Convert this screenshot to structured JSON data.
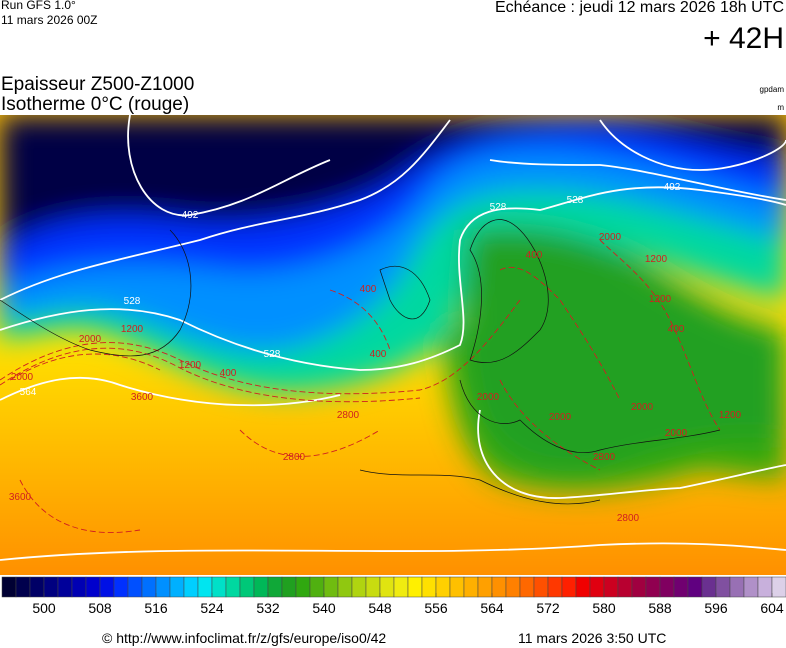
{
  "header": {
    "run": "Run GFS 1.0°",
    "run_date": "11 mars 2026 00Z",
    "valid": "Echéance : jeudi 12 mars 2026 18h UTC",
    "lead": "+ 42H",
    "title_line1": "Epaisseur Z500-Z1000",
    "title_line2": "Isotherme 0°C (rouge)",
    "unit_thickness": "gpdam",
    "unit_isotherm": "m"
  },
  "map": {
    "thickness_labels": [
      492,
      492,
      528,
      528,
      528,
      528,
      564
    ],
    "isotherm_labels": [
      400,
      400,
      400,
      400,
      400,
      1200,
      1200,
      1200,
      1200,
      2000,
      2000,
      2000,
      2000,
      2000,
      2800,
      2800,
      2800,
      3600,
      3600,
      2000,
      1200,
      2800,
      2000
    ]
  },
  "colorbar": {
    "range": [
      494,
      606
    ],
    "ticks": [
      500,
      508,
      516,
      524,
      532,
      540,
      548,
      556,
      564,
      572,
      580,
      588,
      596,
      604
    ],
    "colors": [
      "#000033",
      "#00004d",
      "#000066",
      "#000080",
      "#00009a",
      "#0000b3",
      "#0000cc",
      "#0010e6",
      "#0030ff",
      "#0050ff",
      "#0070ff",
      "#0090ff",
      "#00b0ff",
      "#00cfff",
      "#00e5f0",
      "#00e0c8",
      "#00d8a0",
      "#00c878",
      "#00b858",
      "#10a838",
      "#20a020",
      "#30a810",
      "#50b010",
      "#70bc10",
      "#90c810",
      "#b0d410",
      "#c8dc10",
      "#e0e410",
      "#f0ec10",
      "#fff000",
      "#ffe000",
      "#ffd000",
      "#ffc000",
      "#ffb000",
      "#ffa000",
      "#ff9000",
      "#ff8000",
      "#ff6800",
      "#ff5000",
      "#ff3800",
      "#ff2000",
      "#f00000",
      "#e00010",
      "#cc0020",
      "#b80030",
      "#a00040",
      "#900050",
      "#800060",
      "#700070",
      "#600080",
      "#6a3090",
      "#8050a0",
      "#9870b4",
      "#b090c8",
      "#c8b0dc",
      "#dcd0e8"
    ]
  },
  "footer": {
    "url": "© http://www.infoclimat.fr/z/gfs/europe/iso0/42",
    "date": "11 mars 2026  3:50 UTC"
  }
}
